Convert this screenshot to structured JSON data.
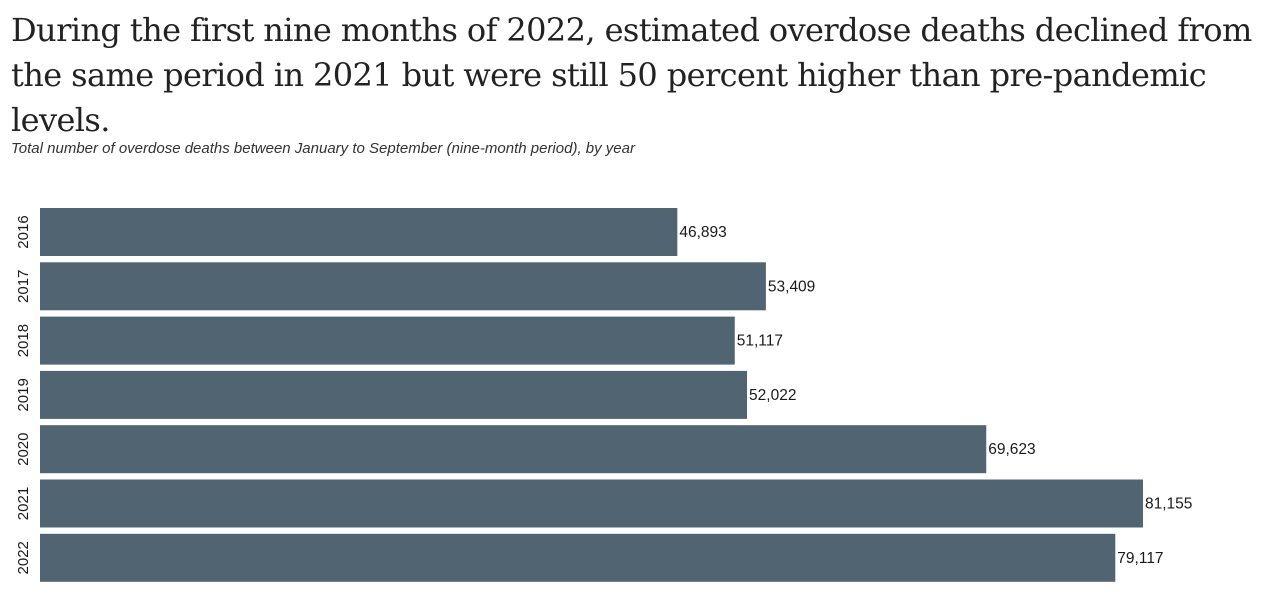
{
  "headline": "During the first nine months of 2022, estimated overdose deaths declined from the same period in 2021 but were still 50 percent higher than pre-pandemic levels.",
  "subtitle": "Total number of overdose deaths between January to September (nine-month period), by year",
  "colors": {
    "bar": "#506472"
  },
  "chart_data": {
    "type": "bar",
    "orientation": "horizontal",
    "title": "During the first nine months of 2022, estimated overdose deaths declined from the same period in 2021 but were still 50 percent higher than pre-pandemic levels.",
    "subtitle": "Total number of overdose deaths between January to September (nine-month period), by year",
    "categories": [
      "2016",
      "2017",
      "2018",
      "2019",
      "2020",
      "2021",
      "2022"
    ],
    "values": [
      46893,
      53409,
      51117,
      52022,
      69623,
      81155,
      79117
    ],
    "value_labels": [
      "46,893",
      "53,409",
      "51,117",
      "52,022",
      "69,623",
      "81,155",
      "79,117"
    ],
    "xlabel": "",
    "ylabel": "",
    "xlim": [
      0,
      81155
    ],
    "grid": false,
    "legend": "none"
  }
}
